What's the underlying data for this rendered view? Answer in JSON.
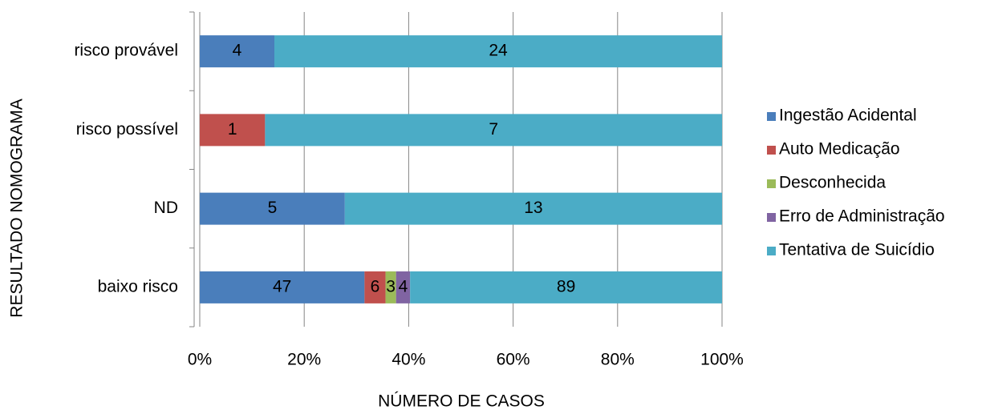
{
  "chart_data": {
    "type": "bar",
    "orientation": "horizontal",
    "stacked": "percent",
    "x_label": "NÚMERO DE CASOS",
    "y_label": "RESULTADO NOMOGRAMA",
    "categories": [
      "baixo risco",
      "ND",
      "risco possível",
      "risco provável"
    ],
    "series": [
      {
        "name": "Ingestão Acidental",
        "color": "#4a7ebb",
        "values": [
          47,
          5,
          null,
          4
        ]
      },
      {
        "name": "Auto Medicação",
        "color": "#c0504d",
        "values": [
          6,
          null,
          1,
          null
        ]
      },
      {
        "name": "Desconhecida",
        "color": "#9bbb59",
        "values": [
          3,
          null,
          null,
          null
        ]
      },
      {
        "name": "Erro de Administração",
        "color": "#8064a2",
        "values": [
          4,
          null,
          null,
          null
        ]
      },
      {
        "name": "Tentativa de Suicídio",
        "color": "#4bacc6",
        "values": [
          89,
          13,
          7,
          24
        ]
      }
    ],
    "xlim": [
      0,
      100
    ],
    "xticks": [
      {
        "value": 0,
        "label": "0%"
      },
      {
        "value": 20,
        "label": "20%"
      },
      {
        "value": 40,
        "label": "40%"
      },
      {
        "value": 60,
        "label": "60%"
      },
      {
        "value": 80,
        "label": "80%"
      },
      {
        "value": 100,
        "label": "100%"
      }
    ],
    "grid": true,
    "legend": "right"
  }
}
